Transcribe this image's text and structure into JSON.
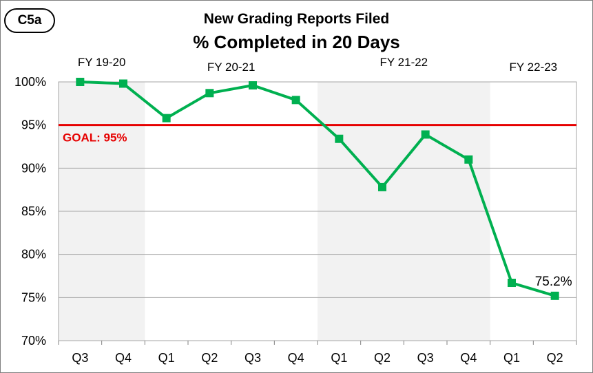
{
  "badge": "C5a",
  "title": "New Grading Reports Filed",
  "subtitle": "% Completed in 20 Days",
  "chart_data": {
    "type": "line",
    "title": "New Grading Reports Filed",
    "subtitle": "% Completed in 20 Days",
    "categories": [
      "Q3",
      "Q4",
      "Q1",
      "Q2",
      "Q3",
      "Q4",
      "Q1",
      "Q2",
      "Q3",
      "Q4",
      "Q1",
      "Q2"
    ],
    "series": [
      {
        "values": [
          100,
          99.8,
          95.8,
          98.7,
          99.6,
          97.9,
          93.4,
          87.8,
          93.9,
          91.0,
          76.7,
          75.2
        ],
        "color": "#00b050"
      }
    ],
    "ylim": [
      70,
      100
    ],
    "yticks": [
      70,
      75,
      80,
      85,
      90,
      95,
      100
    ],
    "ytick_labels": [
      "70%",
      "75%",
      "80%",
      "85%",
      "90%",
      "95%",
      "100%"
    ],
    "fiscal_years": [
      {
        "label": "FY 19-20",
        "start": 0,
        "end": 1,
        "shaded": true
      },
      {
        "label": "FY 20-21",
        "start": 2,
        "end": 5,
        "shaded": false
      },
      {
        "label": "FY 21-22",
        "start": 6,
        "end": 9,
        "shaded": true
      },
      {
        "label": "FY 22-23",
        "start": 10,
        "end": 11,
        "shaded": false
      }
    ],
    "goal": {
      "value": 95,
      "label": "GOAL: 95%",
      "color": "#e60000"
    },
    "data_label": {
      "index": 11,
      "text": "75.2%"
    },
    "grid": true,
    "band_color": "#f2f2f2"
  }
}
